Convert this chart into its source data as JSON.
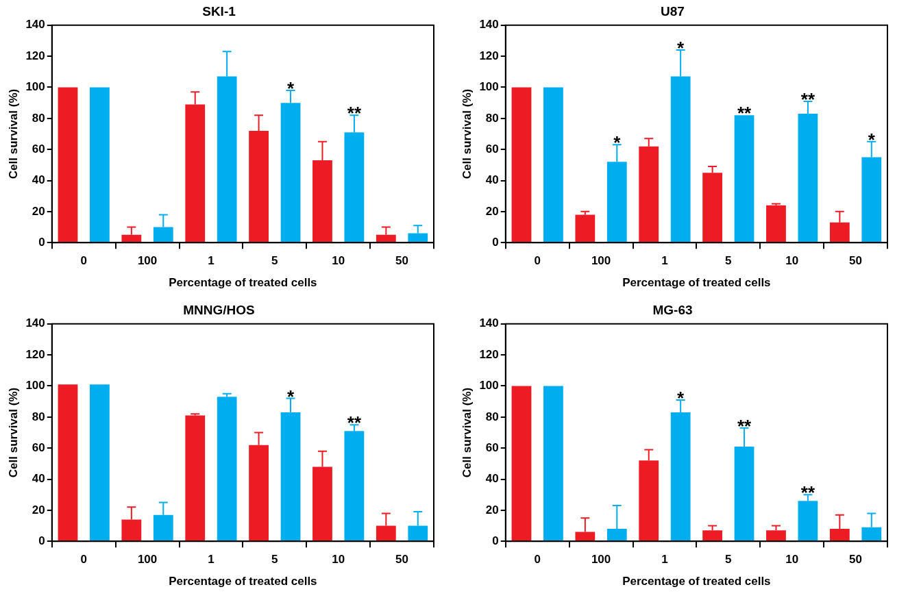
{
  "chart_data": [
    {
      "type": "bar",
      "title": "SKI-1",
      "xlabel": "Percentage of treated cells",
      "ylabel": "Cell survival (%)",
      "categories": [
        "0",
        "100",
        "1",
        "5",
        "10",
        "50"
      ],
      "ylim": [
        0,
        140
      ],
      "yticks": [
        0,
        20,
        40,
        60,
        80,
        100,
        120,
        140
      ],
      "grid": false,
      "legend": false,
      "series": [
        {
          "color": "#ed1c24",
          "values": [
            100,
            5,
            89,
            72,
            53,
            5
          ],
          "errors": [
            null,
            [
              5,
              10
            ],
            [
              89,
              97
            ],
            [
              72,
              82
            ],
            [
              53,
              65
            ],
            [
              5,
              10
            ]
          ]
        },
        {
          "color": "#00aeef",
          "values": [
            100,
            10,
            107,
            90,
            71,
            6
          ],
          "errors": [
            null,
            [
              10,
              18
            ],
            [
              107,
              123
            ],
            [
              90,
              98
            ],
            [
              71,
              82
            ],
            [
              6,
              11
            ]
          ],
          "value_labels": [
            null,
            null,
            null,
            "*",
            "**",
            null
          ]
        }
      ]
    },
    {
      "type": "bar",
      "title": "U87",
      "xlabel": "Percentage of treated cells",
      "ylabel": "Cell survival (%)",
      "categories": [
        "0",
        "100",
        "1",
        "5",
        "10",
        "50"
      ],
      "ylim": [
        0,
        140
      ],
      "yticks": [
        0,
        20,
        40,
        60,
        80,
        100,
        120,
        140
      ],
      "grid": false,
      "legend": false,
      "series": [
        {
          "color": "#ed1c24",
          "values": [
            100,
            18,
            62,
            45,
            24,
            13
          ],
          "errors": [
            null,
            [
              18,
              20
            ],
            [
              62,
              67
            ],
            [
              45,
              49
            ],
            [
              24,
              25
            ],
            [
              13,
              20
            ]
          ]
        },
        {
          "color": "#00aeef",
          "values": [
            100,
            52,
            107,
            82,
            83,
            55
          ],
          "errors": [
            null,
            [
              52,
              63
            ],
            [
              107,
              124
            ],
            null,
            [
              83,
              91
            ],
            [
              55,
              65
            ]
          ],
          "value_labels": [
            null,
            "*",
            "*",
            "**",
            "**",
            "*"
          ]
        }
      ]
    },
    {
      "type": "bar",
      "title": "MNNG/HOS",
      "xlabel": "Percentage of treated cells",
      "ylabel": "Cell survival (%)",
      "categories": [
        "0",
        "100",
        "1",
        "5",
        "10",
        "50"
      ],
      "ylim": [
        0,
        140
      ],
      "yticks": [
        0,
        20,
        40,
        60,
        80,
        100,
        120,
        140
      ],
      "grid": false,
      "legend": false,
      "series": [
        {
          "color": "#ed1c24",
          "values": [
            101,
            14,
            81,
            62,
            48,
            10
          ],
          "errors": [
            null,
            [
              14,
              22
            ],
            [
              81,
              82
            ],
            [
              62,
              70
            ],
            [
              48,
              58
            ],
            [
              10,
              18
            ]
          ]
        },
        {
          "color": "#00aeef",
          "values": [
            101,
            17,
            93,
            83,
            71,
            10
          ],
          "errors": [
            null,
            [
              17,
              25
            ],
            [
              93,
              95
            ],
            [
              83,
              92
            ],
            [
              71,
              75
            ],
            [
              10,
              19
            ]
          ],
          "value_labels": [
            null,
            null,
            null,
            "*",
            "**",
            null
          ]
        }
      ]
    },
    {
      "type": "bar",
      "title": "MG-63",
      "xlabel": "Percentage of treated cells",
      "ylabel": "Cell survival (%)",
      "categories": [
        "0",
        "100",
        "1",
        "5",
        "10",
        "50"
      ],
      "ylim": [
        0,
        140
      ],
      "yticks": [
        0,
        20,
        40,
        60,
        80,
        100,
        120,
        140
      ],
      "grid": false,
      "legend": false,
      "series": [
        {
          "color": "#ed1c24",
          "values": [
            100,
            6,
            52,
            7,
            7,
            8
          ],
          "errors": [
            null,
            [
              6,
              15
            ],
            [
              52,
              59
            ],
            [
              7,
              10
            ],
            [
              7,
              10
            ],
            [
              8,
              17
            ]
          ]
        },
        {
          "color": "#00aeef",
          "values": [
            100,
            8,
            83,
            61,
            26,
            9
          ],
          "errors": [
            null,
            [
              8,
              23
            ],
            [
              83,
              91
            ],
            [
              61,
              73
            ],
            [
              26,
              30
            ],
            [
              9,
              18
            ]
          ],
          "value_labels": [
            null,
            null,
            "*",
            "**",
            "**",
            null
          ]
        }
      ]
    }
  ]
}
